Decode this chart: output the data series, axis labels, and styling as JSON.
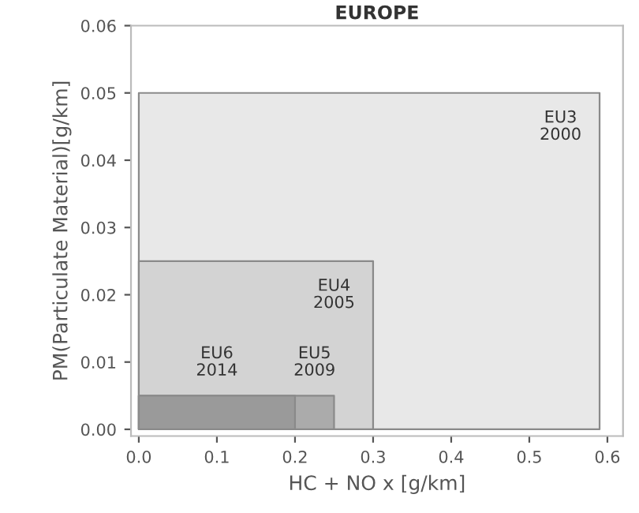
{
  "chart_data": {
    "type": "area",
    "title": "EUROPE",
    "xlabel": "HC + NO x [g/km]",
    "ylabel": "PM(Particulate Material)[g/km]",
    "series": [
      {
        "name": "EU3\n2000",
        "x": [
          0,
          0.59,
          0.59
        ],
        "values": [
          0.05,
          0.05,
          0
        ],
        "color": "#e8e8e8"
      },
      {
        "name": "EU4\n2005",
        "x": [
          0,
          0.3,
          0.3
        ],
        "values": [
          0.025,
          0.025,
          0
        ],
        "color": "#d3d3d3"
      },
      {
        "name": "EU5\n2009",
        "x": [
          0,
          0.25,
          0.25
        ],
        "values": [
          0.005,
          0.005,
          0
        ],
        "color": "#ababab"
      },
      {
        "name": "EU6\n2014",
        "x": [
          0,
          0.2,
          0.2
        ],
        "values": [
          0.005,
          0.005,
          0
        ],
        "color": "#9a9a9a"
      }
    ],
    "xlim": [
      -0.01,
      0.62
    ],
    "xticks": [
      {
        "value": 0,
        "label": "0.0"
      },
      0.1,
      0.2,
      0.3,
      0.4,
      0.5,
      0.6
    ],
    "ylim": [
      -0.001,
      0.06
    ],
    "yticks": [
      {
        "value": 0,
        "label": "0.00"
      },
      {
        "value": 0.01,
        "label": "0.01"
      },
      {
        "value": 0.02,
        "label": "0.02"
      },
      {
        "value": 0.03,
        "label": "0.03"
      },
      {
        "value": 0.04,
        "label": "0.04"
      },
      {
        "value": 0.05,
        "label": "0.05"
      },
      {
        "value": 0.06,
        "label": "0.06"
      }
    ],
    "legend": false
  }
}
